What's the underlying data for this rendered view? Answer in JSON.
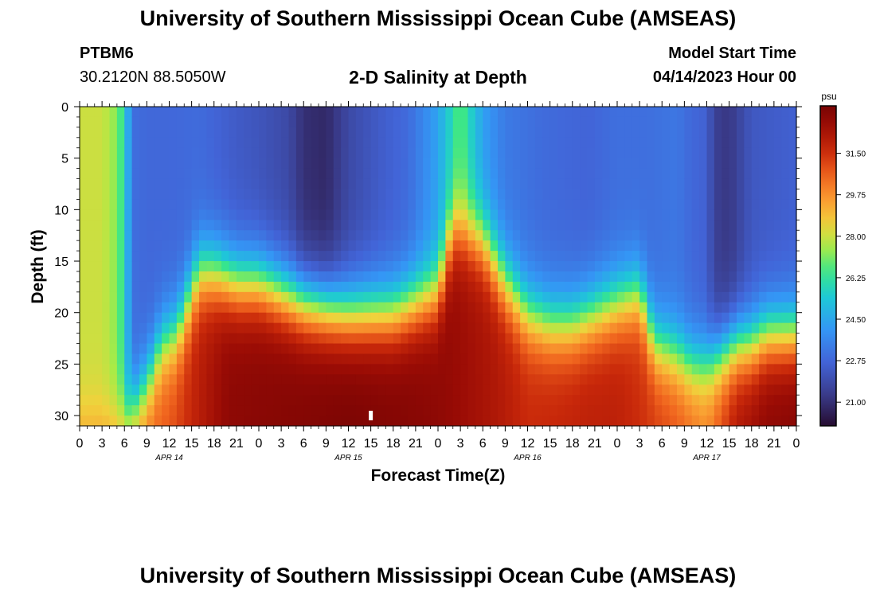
{
  "header": {
    "title": "University of Southern Mississippi Ocean Cube (AMSEAS)",
    "station": "PTBM6",
    "coords": "30.2120N  88.5050W",
    "subtitle": "2-D Salinity at Depth",
    "model_label": "Model Start Time",
    "model_value": "04/14/2023 Hour 00"
  },
  "footer": {
    "title": "University of Southern Mississippi Ocean Cube (AMSEAS)"
  },
  "chart_data": {
    "type": "heatmap",
    "title": "2-D Salinity at Depth",
    "xlabel": "Forecast Time(Z)",
    "ylabel": "Depth (ft)",
    "x_hours": [
      0,
      96
    ],
    "x_ticks": [
      "0",
      "3",
      "6",
      "9",
      "12",
      "15",
      "18",
      "21",
      "0",
      "3",
      "6",
      "9",
      "12",
      "15",
      "18",
      "21",
      "0",
      "3",
      "6",
      "9",
      "12",
      "15",
      "18",
      "21",
      "0",
      "3",
      "6",
      "9",
      "12",
      "15",
      "18",
      "21",
      "0"
    ],
    "day_labels": [
      {
        "label": "APR 14",
        "hour": 12
      },
      {
        "label": "APR 15",
        "hour": 36
      },
      {
        "label": "APR 16",
        "hour": 60
      },
      {
        "label": "APR 17",
        "hour": 84
      }
    ],
    "ylim": [
      0,
      31
    ],
    "y_ticks": [
      0,
      5,
      10,
      15,
      20,
      25,
      30
    ],
    "colorbar": {
      "unit": "psu",
      "range": [
        20,
        33.5
      ],
      "ticks": [
        "31.50",
        "29.75",
        "28.00",
        "26.25",
        "24.50",
        "22.75",
        "21.00"
      ],
      "tick_values": [
        31.5,
        29.75,
        28.0,
        26.25,
        24.5,
        22.75,
        21.0
      ]
    },
    "halocline_depth_ft": {
      "hours": [
        0,
        3,
        6,
        9,
        11,
        13,
        16,
        18,
        21,
        24,
        30,
        36,
        42,
        48,
        50,
        51,
        54,
        57,
        60,
        63,
        66,
        69,
        72,
        75,
        77,
        80,
        82,
        84,
        86,
        88,
        90,
        92,
        96
      ],
      "depth": [
        31,
        31,
        31,
        27,
        23,
        22,
        16,
        16,
        17,
        17,
        19,
        20,
        20,
        18,
        12,
        12,
        13,
        17,
        20,
        21,
        21,
        20,
        19,
        18,
        23,
        24,
        25,
        25,
        24,
        23,
        23,
        22,
        22
      ]
    },
    "surface_salinity_psu": {
      "hours": [
        0,
        3,
        5,
        6,
        7,
        9,
        12,
        16,
        21,
        24,
        28,
        30,
        33,
        36,
        40,
        44,
        48,
        50,
        51,
        52,
        54,
        57,
        62,
        68,
        72,
        76,
        80,
        82,
        84,
        85,
        87,
        90,
        96
      ],
      "values": [
        28.0,
        28.0,
        27.2,
        26.0,
        23.0,
        22.8,
        22.8,
        22.9,
        22.4,
        22.2,
        21.8,
        21.0,
        20.8,
        21.8,
        22.4,
        22.9,
        24.4,
        26.0,
        27.0,
        26.0,
        24.3,
        23.3,
        22.9,
        22.7,
        23.0,
        23.0,
        23.2,
        22.8,
        22.6,
        21.5,
        21.2,
        22.3,
        22.6
      ]
    },
    "deep_salinity_psu": {
      "hours": [
        0,
        4,
        8,
        12,
        16,
        20,
        24,
        28,
        32,
        36,
        40,
        44,
        48,
        52,
        56,
        60,
        64,
        68,
        72,
        76,
        80,
        84,
        88,
        92,
        96
      ],
      "values": [
        30.0,
        30.1,
        30.3,
        30.8,
        32.0,
        33.0,
        33.1,
        33.2,
        33.3,
        33.4,
        33.3,
        33.2,
        33.0,
        32.6,
        32.2,
        31.6,
        31.7,
        31.9,
        31.9,
        31.4,
        30.8,
        30.0,
        32.2,
        33.0,
        33.2
      ]
    },
    "marker": {
      "hour": 39,
      "depth_ft": 30
    }
  }
}
